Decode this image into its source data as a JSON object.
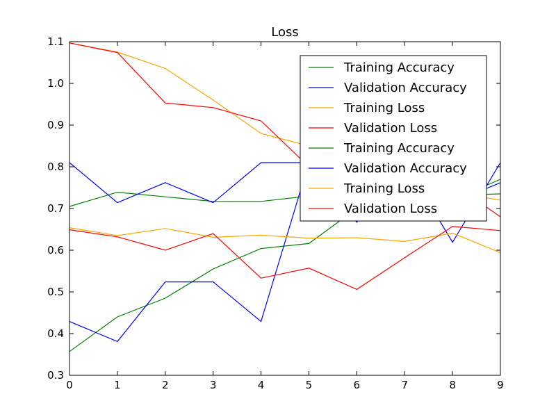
{
  "chart_data": {
    "type": "line",
    "title": "Loss",
    "xlabel": "",
    "ylabel": "",
    "xlim": [
      0,
      9
    ],
    "ylim": [
      0.3,
      1.1
    ],
    "x_ticks": [
      "0",
      "1",
      "2",
      "3",
      "4",
      "5",
      "6",
      "7",
      "8",
      "9"
    ],
    "y_ticks": [
      "0.3",
      "0.4",
      "0.5",
      "0.6",
      "0.7",
      "0.8",
      "0.9",
      "1.0",
      "1.1"
    ],
    "grid": false,
    "legend_position": "top-right",
    "x": [
      0,
      1,
      2,
      3,
      4,
      5,
      6,
      7,
      8,
      9
    ],
    "series": [
      {
        "name": "Training Accuracy",
        "color": "#008000",
        "values": [
          0.357,
          0.44,
          0.485,
          0.555,
          0.604,
          0.616,
          0.7,
          0.73,
          0.72,
          0.77
        ]
      },
      {
        "name": "Validation Accuracy",
        "color": "#0000ff",
        "values": [
          0.429,
          0.381,
          0.524,
          0.524,
          0.429,
          0.81,
          0.667,
          0.81,
          0.619,
          0.81
        ]
      },
      {
        "name": "Training Loss",
        "color": "#ffa500",
        "values": [
          1.097,
          1.075,
          1.036,
          0.96,
          0.88,
          0.85,
          0.8,
          0.77,
          0.74,
          0.72
        ]
      },
      {
        "name": "Validation Loss",
        "color": "#ff0000",
        "values": [
          1.097,
          1.074,
          0.953,
          0.942,
          0.91,
          0.8,
          0.77,
          0.76,
          0.76,
          0.68
        ]
      },
      {
        "name": "Training Accuracy",
        "color": "#008000",
        "values": [
          0.705,
          0.739,
          0.728,
          0.717,
          0.717,
          0.73,
          0.74,
          0.745,
          0.732,
          0.735
        ]
      },
      {
        "name": "Validation Accuracy",
        "color": "#0000ff",
        "values": [
          0.81,
          0.714,
          0.762,
          0.714,
          0.81,
          0.81,
          0.81,
          0.81,
          0.714,
          0.762
        ]
      },
      {
        "name": "Training Loss",
        "color": "#ffa500",
        "values": [
          0.654,
          0.635,
          0.652,
          0.631,
          0.636,
          0.629,
          0.63,
          0.621,
          0.641,
          0.594
        ]
      },
      {
        "name": "Validation Loss",
        "color": "#ff0000",
        "values": [
          0.649,
          0.632,
          0.6,
          0.64,
          0.533,
          0.557,
          0.506,
          0.582,
          0.657,
          0.647
        ]
      }
    ],
    "legend": [
      {
        "name": "Training Accuracy",
        "color": "#008000"
      },
      {
        "name": "Validation Accuracy",
        "color": "#0000ff"
      },
      {
        "name": "Training Loss",
        "color": "#ffa500"
      },
      {
        "name": "Validation Loss",
        "color": "#ff0000"
      },
      {
        "name": "Training Accuracy",
        "color": "#008000"
      },
      {
        "name": "Validation Accuracy",
        "color": "#0000ff"
      },
      {
        "name": "Training Loss",
        "color": "#ffa500"
      },
      {
        "name": "Validation Loss",
        "color": "#ff0000"
      }
    ]
  }
}
